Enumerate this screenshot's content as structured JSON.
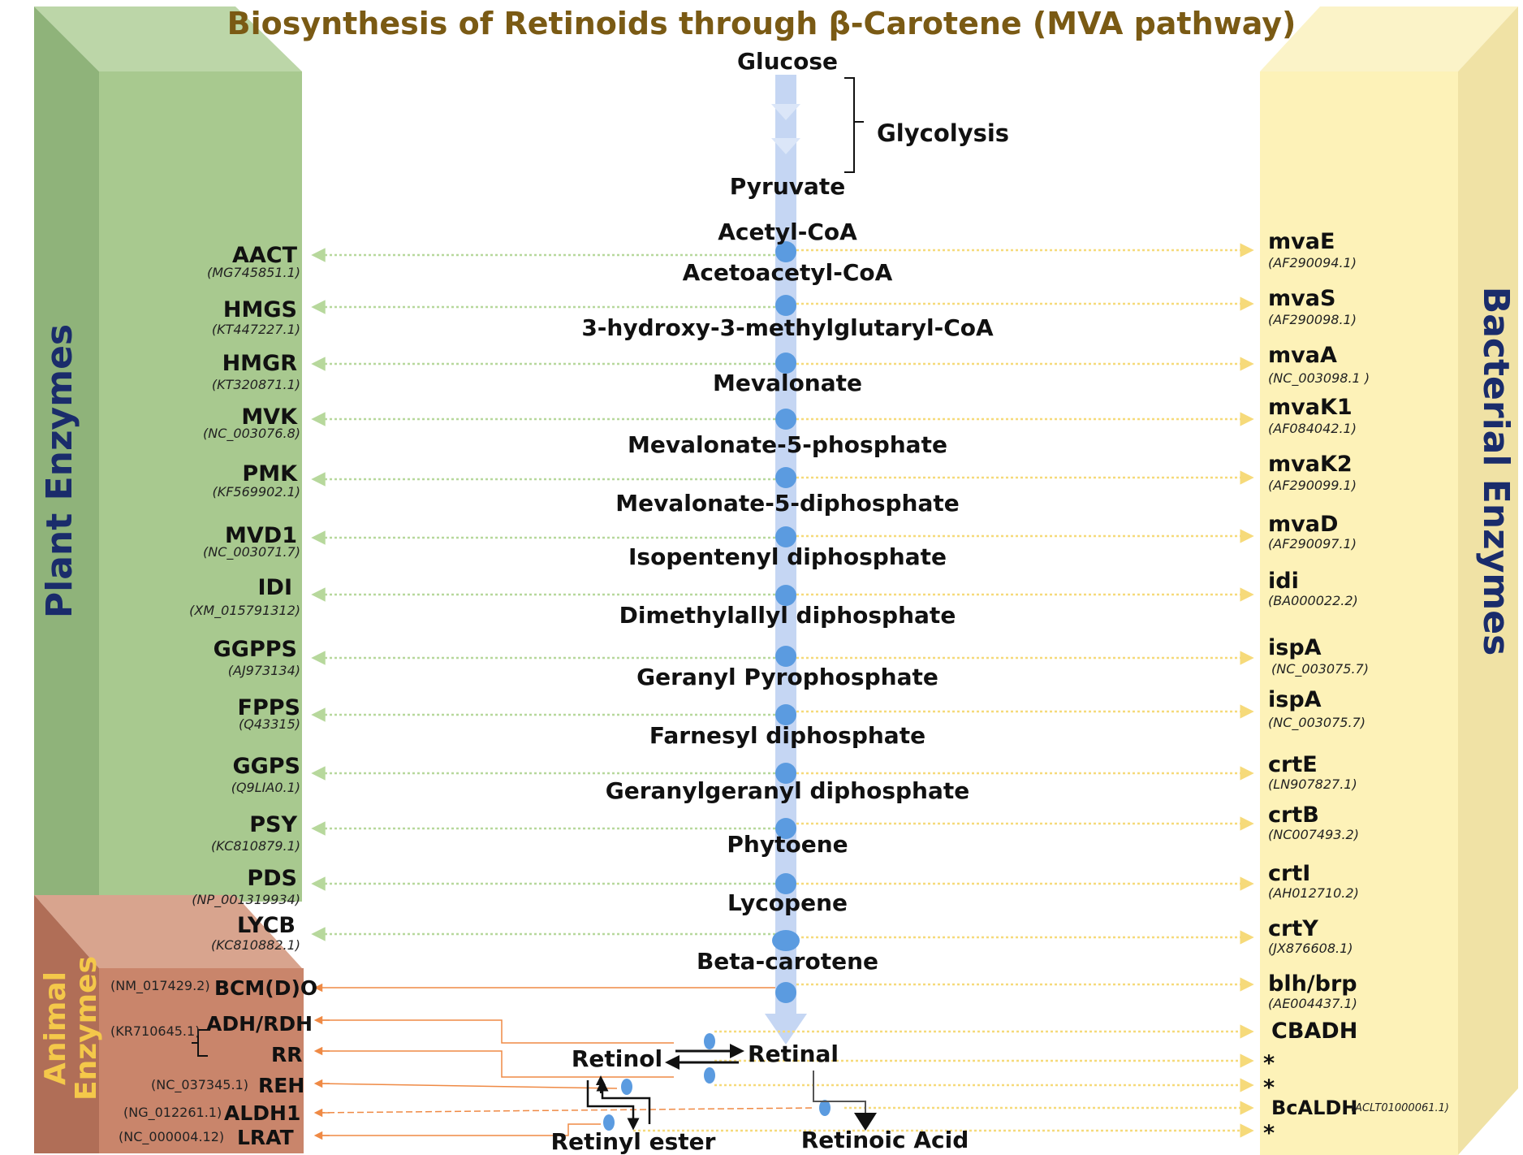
{
  "title": "Biosynthesis of Retinoids through β-Carotene (MVA pathway)",
  "panels": {
    "plant_label": "Plant Enzymes",
    "bacterial_label": "Bacterial Enzymes",
    "animal_label_line1": "Animal",
    "animal_label_line2": "Enzymes"
  },
  "glycolysis_label": "Glycolysis",
  "metabolites": [
    "Glucose",
    "Pyruvate",
    "Acetyl-CoA",
    "Acetoacetyl-CoA",
    "3-hydroxy-3-methylglutaryl-CoA",
    "Mevalonate",
    "Mevalonate-5-phosphate",
    "Mevalonate-5-diphosphate",
    "Isopentenyl diphosphate",
    "Dimethylallyl diphosphate",
    "Geranyl Pyrophosphate",
    "Farnesyl diphosphate",
    "Geranylgeranyl diphosphate",
    "Phytoene",
    "Lycopene",
    "Beta-carotene"
  ],
  "retinoids": {
    "retinol": "Retinol",
    "retinal": "Retinal",
    "retinyl_ester": "Retinyl ester",
    "retinoic_acid": "Retinoic Acid"
  },
  "plant_enzymes": [
    {
      "name": "AACT",
      "acc": "(MG745851.1)"
    },
    {
      "name": "HMGS",
      "acc": "(KT447227.1)"
    },
    {
      "name": "HMGR",
      "acc": "(KT320871.1)"
    },
    {
      "name": "MVK",
      "acc": "(NC_003076.8)"
    },
    {
      "name": "PMK",
      "acc": "(KF569902.1)"
    },
    {
      "name": "MVD1",
      "acc": "(NC_003071.7)"
    },
    {
      "name": "IDI",
      "acc": "(XM_015791312)"
    },
    {
      "name": "GGPPS",
      "acc": "(AJ973134)"
    },
    {
      "name": "FPPS",
      "acc": "(Q43315)"
    },
    {
      "name": "GGPS",
      "acc": "(Q9LIA0.1)"
    },
    {
      "name": "PSY",
      "acc": "(KC810879.1)"
    },
    {
      "name": "PDS",
      "acc": "(NP_001319934)"
    },
    {
      "name": "LYCB",
      "acc": "(KC810882.1)"
    }
  ],
  "animal_enzymes": [
    {
      "name": "BCM(D)O",
      "acc": "(NM_017429.2)"
    },
    {
      "name": "ADH/RDH",
      "acc": ""
    },
    {
      "name": "RR",
      "acc": ""
    },
    {
      "name": "REH",
      "acc": "(NC_037345.1)"
    },
    {
      "name": "ALDH1",
      "acc": "(NG_012261.1)"
    },
    {
      "name": "LRAT",
      "acc": "(NC_000004.12)"
    }
  ],
  "animal_shared_acc": "(KR710645.1)",
  "bacterial_enzymes": [
    {
      "name": "mvaE",
      "acc": "(AF290094.1)"
    },
    {
      "name": "mvaS",
      "acc": "(AF290098.1)"
    },
    {
      "name": "mvaA",
      "acc": "(NC_003098.1 )"
    },
    {
      "name": "mvaK1",
      "acc": "(AF084042.1)"
    },
    {
      "name": "mvaK2",
      "acc": "(AF290099.1)"
    },
    {
      "name": "mvaD",
      "acc": "(AF290097.1)"
    },
    {
      "name": "idi",
      "acc": "(BA000022.2)"
    },
    {
      "name": "ispA",
      "acc": "(NC_003075.7)"
    },
    {
      "name": "ispA",
      "acc": "(NC_003075.7)"
    },
    {
      "name": "crtE",
      "acc": "(LN907827.1)"
    },
    {
      "name": "crtB",
      "acc": "(NC007493.2)"
    },
    {
      "name": "crtI",
      "acc": "(AH012710.2)"
    },
    {
      "name": "crtY",
      "acc": "(JX876608.1)"
    },
    {
      "name": "blh/brp",
      "acc": "(AE004437.1)"
    },
    {
      "name": "CBADH",
      "acc": ""
    },
    {
      "name": "*",
      "acc": ""
    },
    {
      "name": "*",
      "acc": ""
    },
    {
      "name": "BcALDH",
      "acc": "(ACLT01000061.1)"
    },
    {
      "name": "*",
      "acc": ""
    }
  ],
  "colors": {
    "plant_front": "#a8c98f",
    "plant_side": "#8fb37a",
    "plant_top": "#bcd6a8",
    "bacterial_front": "#fdf2b8",
    "bacterial_side": "#f0e2a5",
    "animal_front": "#c9856b",
    "animal_side": "#b06e57",
    "animal_top": "#d8a48e",
    "main_arrow": "#c5d6f3",
    "node": "#5b9be0",
    "plant_arrow": "#b7d89c",
    "bact_arrow": "#f6da7a",
    "animal_arrow": "#ef8a45",
    "title": "#7a5a14",
    "panel_label": "#1a2c6b"
  }
}
